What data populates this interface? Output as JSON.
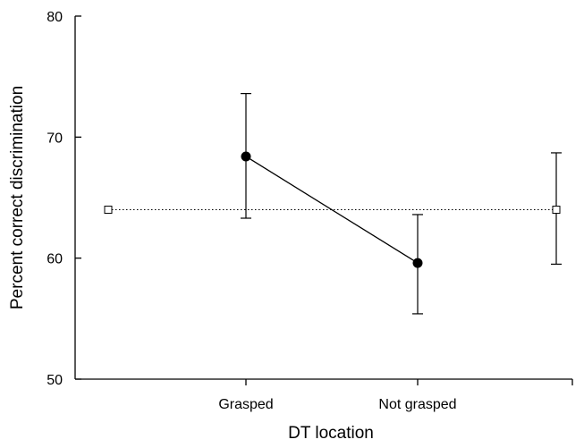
{
  "chart_data": {
    "type": "scatter",
    "title": "",
    "xlabel": "DT location",
    "ylabel": "Percent correct discrimination",
    "categories": [
      "Grasped",
      "Not grasped"
    ],
    "ylim": [
      50,
      80
    ],
    "yticks": [
      50,
      60,
      70,
      80
    ],
    "grid": false,
    "series": [
      {
        "style": "filled-circle-solid-line",
        "x": [
          "Grasped",
          "Not grasped"
        ],
        "y": [
          68.4,
          59.6
        ],
        "err_low": [
          63.3,
          55.4
        ],
        "err_high": [
          73.6,
          63.6
        ]
      },
      {
        "style": "open-square-dotted-line",
        "x": [
          "left-end",
          "right-end"
        ],
        "y": [
          64.0,
          64.0
        ],
        "err_low": [
          null,
          59.5
        ],
        "err_high": [
          null,
          68.7
        ]
      }
    ]
  }
}
